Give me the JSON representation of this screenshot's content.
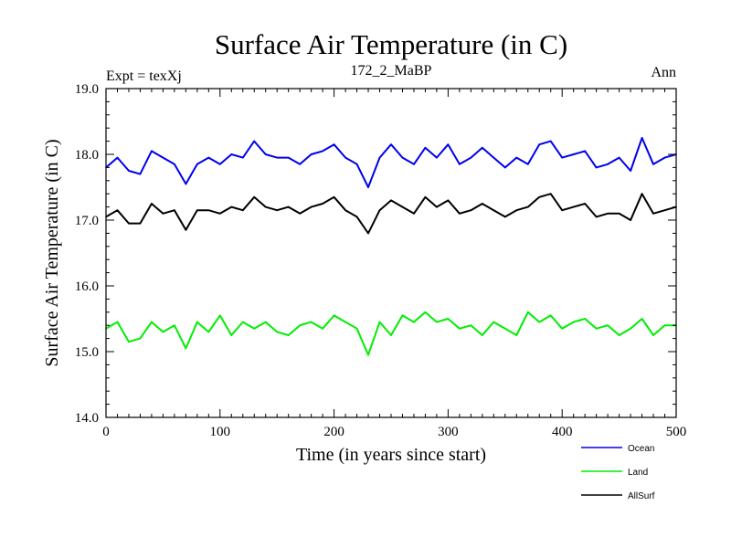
{
  "chart_data": {
    "type": "line",
    "title": "Surface Air Temperature (in C)",
    "subtitle": "172_2_MaBP",
    "left_label": "Expt = texXj",
    "right_label": "Ann",
    "xlabel": "Time (in years since start)",
    "ylabel": "Surface Air Temperature (in C)",
    "xlim": [
      0,
      500
    ],
    "ylim": [
      14.0,
      19.0
    ],
    "x_ticks": [
      0,
      100,
      200,
      300,
      400,
      500
    ],
    "x_tick_labels": [
      "0",
      "100",
      "200",
      "300",
      "400",
      "500"
    ],
    "y_ticks": [
      14.0,
      15.0,
      16.0,
      17.0,
      18.0,
      19.0
    ],
    "y_tick_labels": [
      "14.0",
      "15.0",
      "16.0",
      "17.0",
      "18.0",
      "19.0"
    ],
    "grid": false,
    "legend_position": "bottom-right",
    "series": [
      {
        "name": "Ocean",
        "color": "#0000ee",
        "x": [
          0,
          10,
          20,
          30,
          40,
          50,
          60,
          70,
          80,
          90,
          100,
          110,
          120,
          130,
          140,
          150,
          160,
          170,
          180,
          190,
          200,
          210,
          220,
          230,
          240,
          250,
          260,
          270,
          280,
          290,
          300,
          310,
          320,
          330,
          340,
          350,
          360,
          370,
          380,
          390,
          400,
          410,
          420,
          430,
          440,
          450,
          460,
          470,
          480,
          490,
          500
        ],
        "values": [
          17.8,
          17.95,
          17.75,
          17.7,
          18.05,
          17.95,
          17.85,
          17.55,
          17.85,
          17.95,
          17.85,
          18.0,
          17.95,
          18.2,
          18.0,
          17.95,
          17.95,
          17.85,
          18.0,
          18.05,
          18.15,
          17.95,
          17.85,
          17.5,
          17.95,
          18.15,
          17.95,
          17.85,
          18.1,
          17.95,
          18.15,
          17.85,
          17.95,
          18.1,
          17.95,
          17.8,
          17.95,
          17.85,
          18.15,
          18.2,
          17.95,
          18.0,
          18.05,
          17.8,
          17.85,
          17.95,
          17.75,
          18.25,
          17.85,
          17.95,
          18.0
        ]
      },
      {
        "name": "Land",
        "color": "#00ee00",
        "x": [
          0,
          10,
          20,
          30,
          40,
          50,
          60,
          70,
          80,
          90,
          100,
          110,
          120,
          130,
          140,
          150,
          160,
          170,
          180,
          190,
          200,
          210,
          220,
          230,
          240,
          250,
          260,
          270,
          280,
          290,
          300,
          310,
          320,
          330,
          340,
          350,
          360,
          370,
          380,
          390,
          400,
          410,
          420,
          430,
          440,
          450,
          460,
          470,
          480,
          490,
          500
        ],
        "values": [
          15.35,
          15.45,
          15.15,
          15.2,
          15.45,
          15.3,
          15.4,
          15.05,
          15.45,
          15.3,
          15.55,
          15.25,
          15.45,
          15.35,
          15.45,
          15.3,
          15.25,
          15.4,
          15.45,
          15.35,
          15.55,
          15.45,
          15.35,
          14.95,
          15.45,
          15.25,
          15.55,
          15.45,
          15.6,
          15.45,
          15.5,
          15.35,
          15.4,
          15.25,
          15.45,
          15.35,
          15.25,
          15.6,
          15.45,
          15.55,
          15.35,
          15.45,
          15.5,
          15.35,
          15.4,
          15.25,
          15.35,
          15.5,
          15.25,
          15.4,
          15.4
        ]
      },
      {
        "name": "AllSurf",
        "color": "#000000",
        "x": [
          0,
          10,
          20,
          30,
          40,
          50,
          60,
          70,
          80,
          90,
          100,
          110,
          120,
          130,
          140,
          150,
          160,
          170,
          180,
          190,
          200,
          210,
          220,
          230,
          240,
          250,
          260,
          270,
          280,
          290,
          300,
          310,
          320,
          330,
          340,
          350,
          360,
          370,
          380,
          390,
          400,
          410,
          420,
          430,
          440,
          450,
          460,
          470,
          480,
          490,
          500
        ],
        "values": [
          17.05,
          17.15,
          16.95,
          16.95,
          17.25,
          17.1,
          17.15,
          16.85,
          17.15,
          17.15,
          17.1,
          17.2,
          17.15,
          17.35,
          17.2,
          17.15,
          17.2,
          17.1,
          17.2,
          17.25,
          17.35,
          17.15,
          17.05,
          16.8,
          17.15,
          17.3,
          17.2,
          17.1,
          17.35,
          17.2,
          17.3,
          17.1,
          17.15,
          17.25,
          17.15,
          17.05,
          17.15,
          17.2,
          17.35,
          17.4,
          17.15,
          17.2,
          17.25,
          17.05,
          17.1,
          17.1,
          17.0,
          17.4,
          17.1,
          17.15,
          17.2
        ]
      }
    ]
  }
}
